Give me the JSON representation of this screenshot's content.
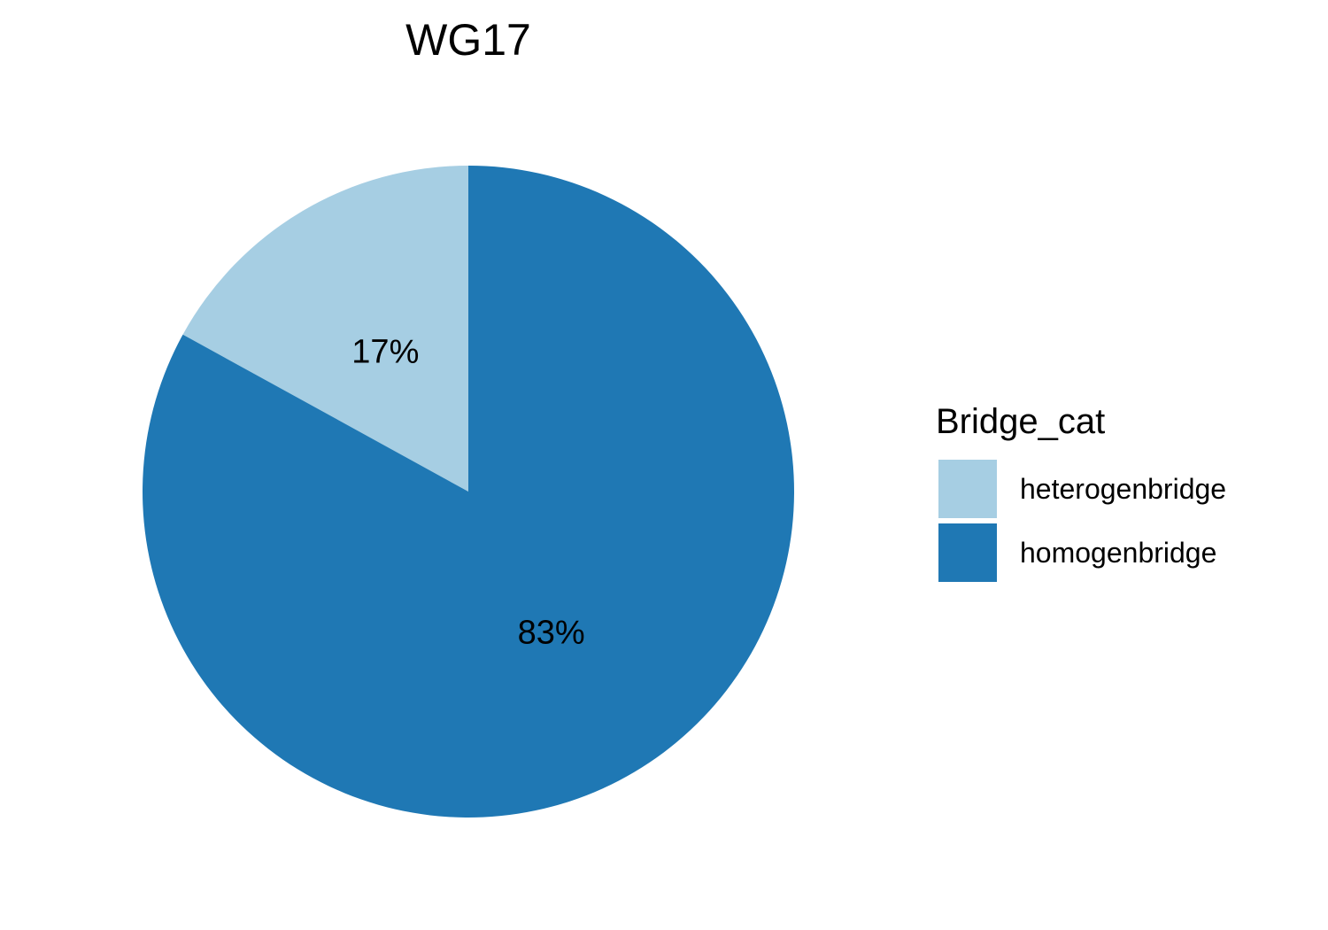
{
  "chart_data": {
    "type": "pie",
    "title": "WG17",
    "categories": [
      "heterogenbridge",
      "homogenbridge"
    ],
    "values": [
      17,
      83
    ],
    "labels": [
      "17%",
      "83%"
    ],
    "colors": [
      "#a6cee3",
      "#1f78b4"
    ],
    "legend": {
      "title": "Bridge_cat",
      "position": "right",
      "entries": [
        "heterogenbridge",
        "homogenbridge"
      ]
    },
    "start_direction": "top",
    "direction": "counterclockwise"
  }
}
